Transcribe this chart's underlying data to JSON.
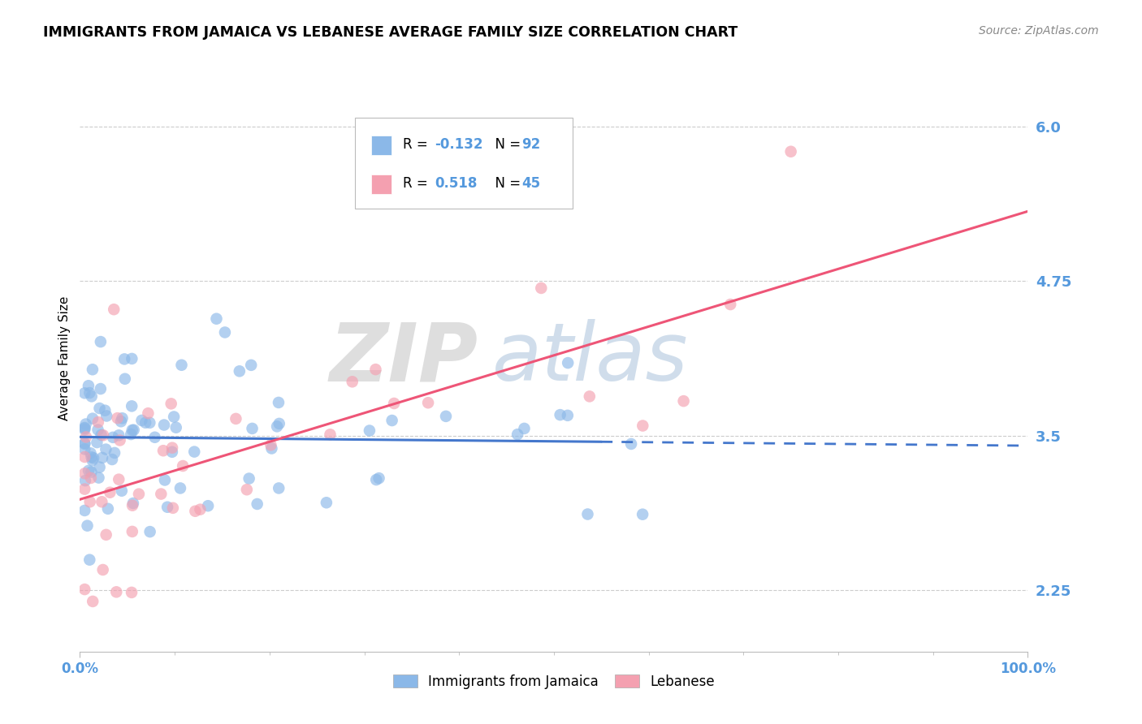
{
  "title": "IMMIGRANTS FROM JAMAICA VS LEBANESE AVERAGE FAMILY SIZE CORRELATION CHART",
  "source": "Source: ZipAtlas.com",
  "ylabel": "Average Family Size",
  "xlim": [
    0,
    100
  ],
  "ylim": [
    1.75,
    6.5
  ],
  "yticks": [
    2.25,
    3.5,
    4.75,
    6.0
  ],
  "xticklabels": [
    "0.0%",
    "100.0%"
  ],
  "blue_R": -0.132,
  "blue_N": 92,
  "pink_R": 0.518,
  "pink_N": 45,
  "blue_color": "#8BB8E8",
  "pink_color": "#F4A0B0",
  "trend_blue_color": "#4477CC",
  "trend_pink_color": "#EE5577",
  "watermark": "ZIPatlas",
  "grid_color": "#CCCCCC",
  "tick_color": "#5599DD",
  "title_fontsize": 12.5,
  "source_fontsize": 10,
  "ytick_fontsize": 13,
  "xtick_fontsize": 12
}
